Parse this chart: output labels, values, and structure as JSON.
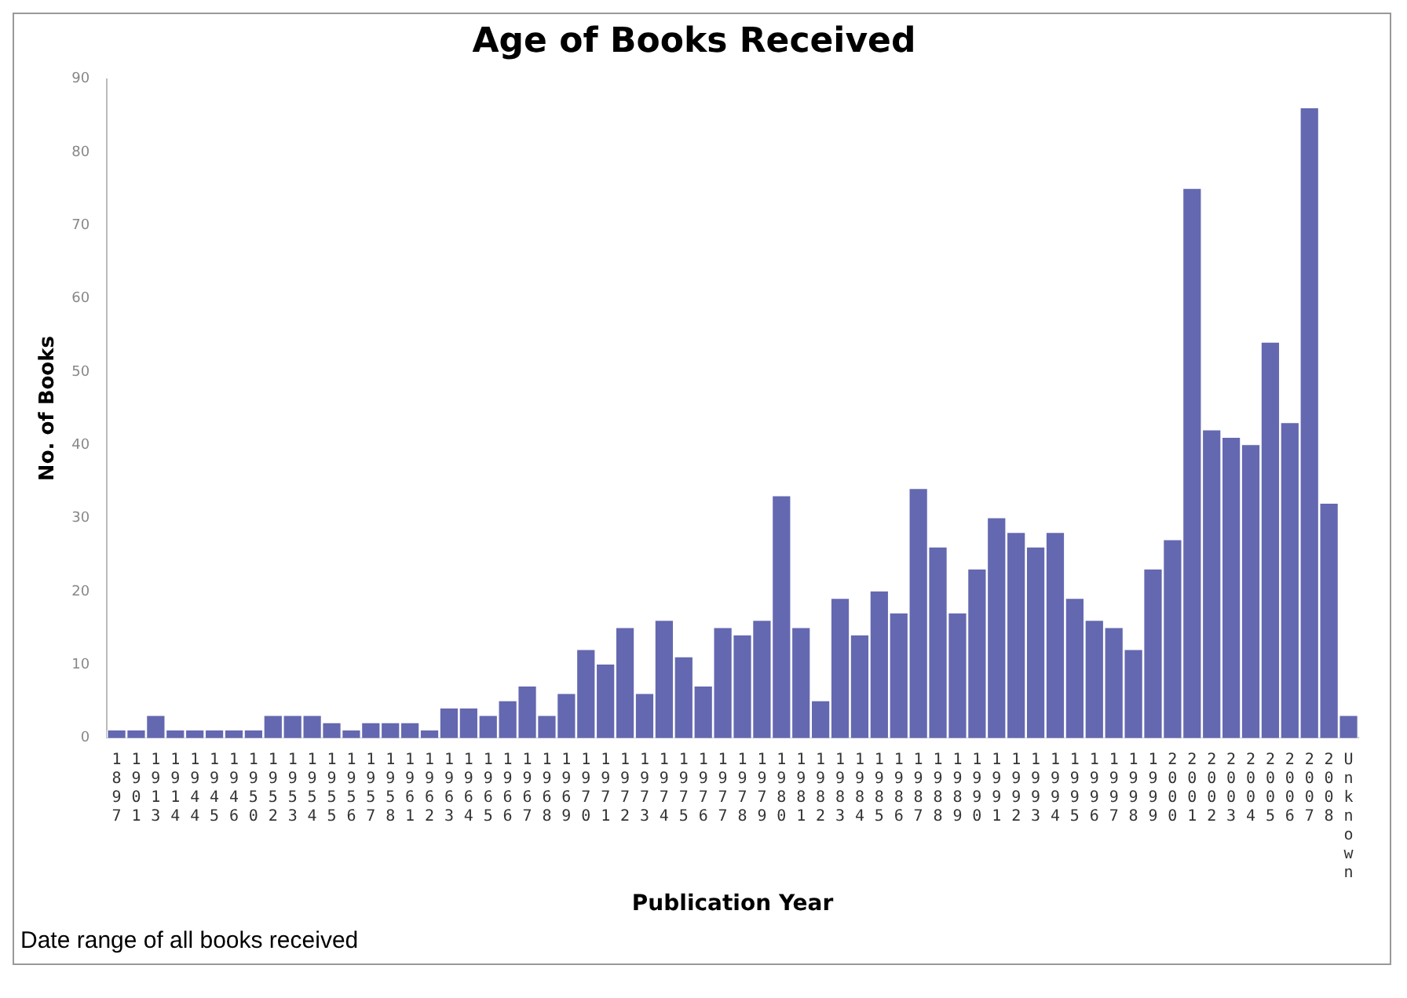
{
  "chart_data": {
    "type": "bar",
    "title": "Age of Books Received",
    "xlabel": "Publication Year",
    "ylabel": "No. of Books",
    "categories": [
      "1897",
      "1901",
      "1913",
      "1914",
      "1944",
      "1945",
      "1946",
      "1950",
      "1952",
      "1953",
      "1954",
      "1955",
      "1956",
      "1957",
      "1958",
      "1961",
      "1962",
      "1963",
      "1964",
      "1965",
      "1966",
      "1967",
      "1968",
      "1969",
      "1970",
      "1971",
      "1972",
      "1973",
      "1974",
      "1975",
      "1976",
      "1977",
      "1978",
      "1979",
      "1980",
      "1981",
      "1982",
      "1983",
      "1984",
      "1985",
      "1986",
      "1987",
      "1988",
      "1989",
      "1990",
      "1991",
      "1992",
      "1993",
      "1994",
      "1995",
      "1996",
      "1997",
      "1998",
      "1999",
      "2000",
      "2001",
      "2002",
      "2003",
      "2004",
      "2005",
      "2006",
      "2007",
      "2008",
      "Unknown"
    ],
    "values": [
      1,
      1,
      3,
      1,
      1,
      1,
      1,
      1,
      3,
      3,
      3,
      2,
      1,
      2,
      2,
      2,
      1,
      4,
      4,
      3,
      5,
      7,
      3,
      6,
      12,
      10,
      15,
      6,
      16,
      11,
      7,
      15,
      14,
      16,
      33,
      15,
      5,
      19,
      14,
      20,
      17,
      34,
      26,
      17,
      23,
      30,
      28,
      26,
      28,
      19,
      16,
      15,
      12,
      23,
      27,
      75,
      42,
      41,
      40,
      54,
      43,
      86,
      32,
      3
    ],
    "color": "#6468b0",
    "ylim": [
      0,
      90
    ],
    "yticks": [
      0,
      10,
      20,
      30,
      40,
      50,
      60,
      70,
      80,
      90
    ],
    "grid": false,
    "legend": false,
    "annotations": [
      "Date range of all books received"
    ]
  }
}
